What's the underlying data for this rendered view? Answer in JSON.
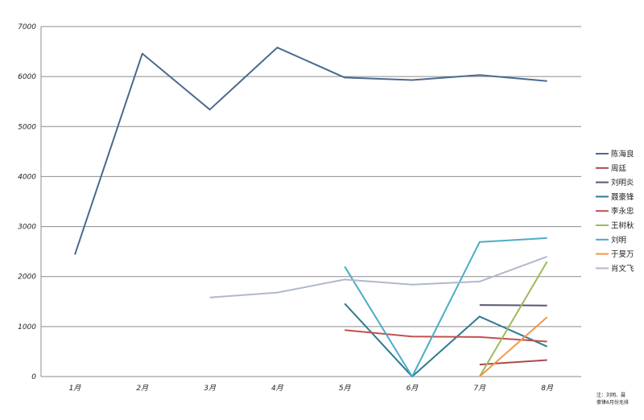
{
  "chart_data": {
    "type": "line",
    "categories": [
      "1月",
      "2月",
      "3月",
      "4月",
      "5月",
      "6月",
      "7月",
      "8月"
    ],
    "ylim": [
      0,
      7000
    ],
    "yticks": [
      0,
      1000,
      2000,
      3000,
      4000,
      5000,
      6000,
      7000
    ],
    "grid": true,
    "legend_position": "right",
    "series": [
      {
        "name": "陈海良",
        "color": "#4a6a8e",
        "values": [
          2440,
          6460,
          5340,
          6580,
          5980,
          5930,
          6030,
          5910
        ]
      },
      {
        "name": "周廷",
        "color": "#a64c48",
        "values": [
          null,
          null,
          null,
          null,
          null,
          null,
          240,
          330
        ]
      },
      {
        "name": "刘明炎",
        "color": "#5b5670",
        "values": [
          null,
          null,
          null,
          null,
          null,
          null,
          1430,
          1420
        ]
      },
      {
        "name": "聂豪锋",
        "color": "#2f7a90",
        "values": [
          null,
          null,
          null,
          null,
          1460,
          0,
          1200,
          600
        ]
      },
      {
        "name": "李永忠",
        "color": "#c0504d",
        "values": [
          null,
          null,
          null,
          null,
          930,
          800,
          790,
          700
        ]
      },
      {
        "name": "王树秋",
        "color": "#9bbb59",
        "values": [
          null,
          null,
          null,
          null,
          null,
          null,
          0,
          2300
        ]
      },
      {
        "name": "刘明",
        "color": "#4bacc6",
        "values": [
          null,
          null,
          null,
          null,
          2200,
          0,
          2690,
          2770
        ]
      },
      {
        "name": "于旻万",
        "color": "#f79646",
        "values": [
          null,
          null,
          null,
          null,
          null,
          null,
          0,
          1190
        ]
      },
      {
        "name": "肖文飞",
        "color": "#b0b8cd",
        "values": [
          null,
          null,
          1580,
          1680,
          1940,
          1840,
          1900,
          2400
        ]
      }
    ],
    "note_lines": [
      "注：刘明、聂",
      "豪锋6月份无排"
    ]
  }
}
